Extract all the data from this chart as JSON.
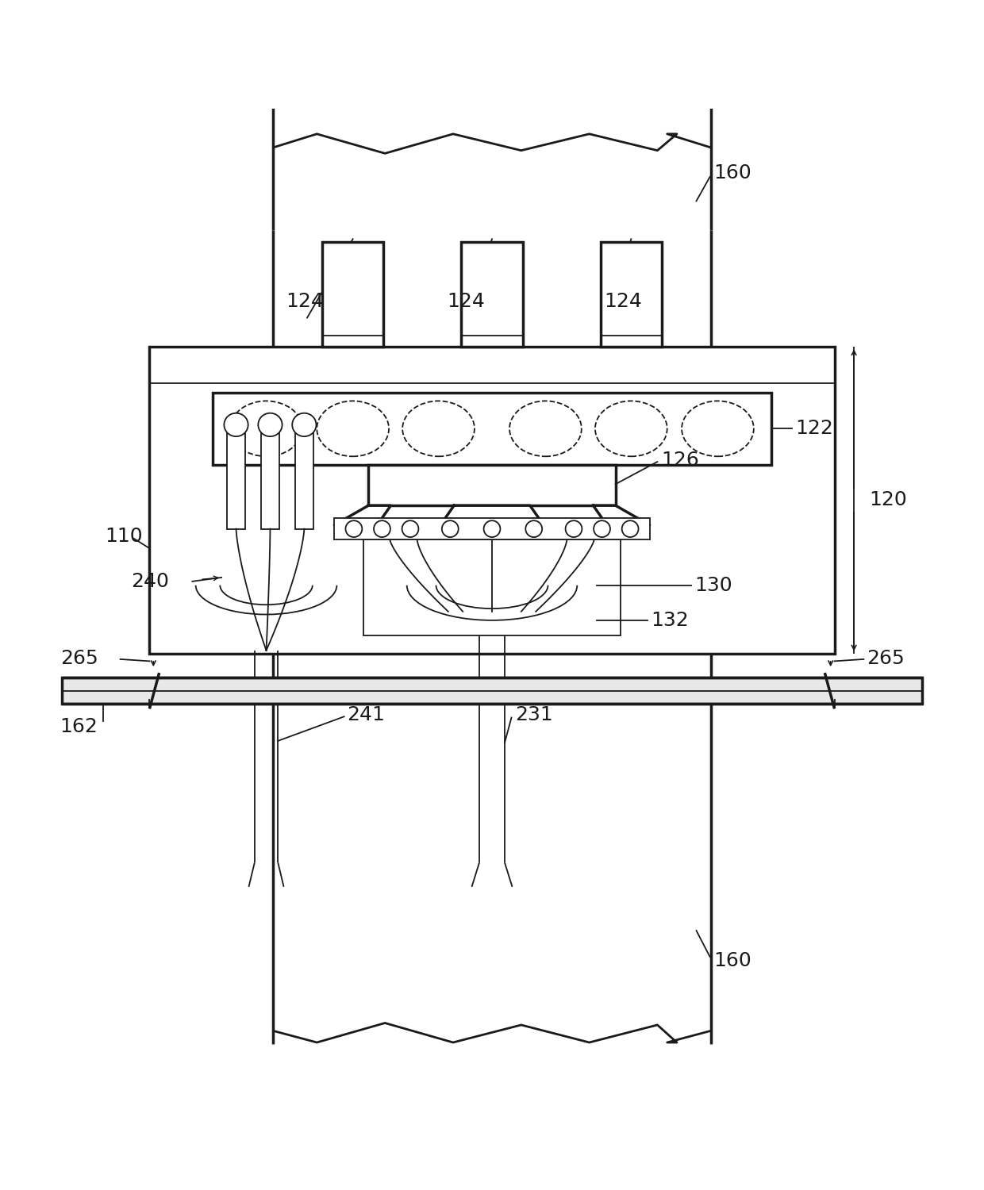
{
  "bg_color": "#ffffff",
  "line_color": "#1a1a1a",
  "lw": 2.0,
  "lw_thick": 2.5,
  "lw_thin": 1.3,
  "label_fontsize": 18,
  "label_color": "#1a1a1a",
  "figsize": [
    12.4,
    15.0
  ],
  "dpi": 100
}
